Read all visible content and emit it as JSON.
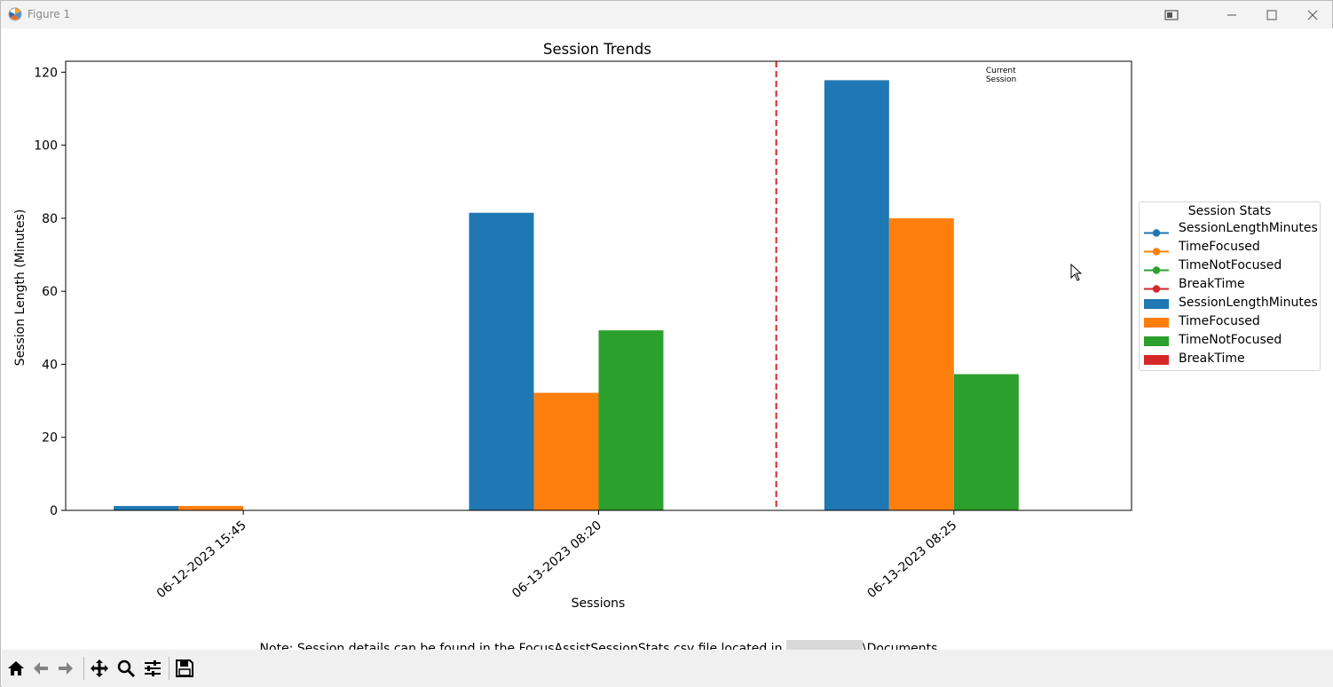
{
  "window": {
    "title": "Figure 1"
  },
  "chart_data": {
    "type": "bar",
    "title": "Session Trends",
    "xlabel": "Sessions",
    "ylabel": "Session Length (Minutes)",
    "ylim": [
      0,
      123
    ],
    "yticks": [
      0,
      20,
      40,
      60,
      80,
      100,
      120
    ],
    "categories": [
      "06-12-2023 15:45",
      "06-13-2023 08:20",
      "06-13-2023 08:25"
    ],
    "series": [
      {
        "name": "SessionLengthMinutes",
        "color": "#1f77b4",
        "values": [
          1.2,
          81.5,
          117.8
        ]
      },
      {
        "name": "TimeFocused",
        "color": "#ff7f0e",
        "values": [
          1.2,
          32.2,
          80.0
        ]
      },
      {
        "name": "TimeNotFocused",
        "color": "#2ca02c",
        "values": [
          0.0,
          49.3,
          37.3
        ]
      },
      {
        "name": "BreakTime",
        "color": "#d62728",
        "values": [
          0.0,
          0.0,
          0.0
        ]
      }
    ],
    "reference_line": {
      "after_category": "06-13-2023 08:20",
      "color": "#d62728",
      "style": "dashed"
    },
    "annotation": [
      "Current",
      "Session"
    ],
    "legend": {
      "title": "Session Stats",
      "placement": "outside-right",
      "entries": [
        {
          "label": "SessionLengthMinutes",
          "kind": "line",
          "color": "#1f77b4"
        },
        {
          "label": "TimeFocused",
          "kind": "line",
          "color": "#ff7f0e"
        },
        {
          "label": "TimeNotFocused",
          "kind": "line",
          "color": "#2ca02c"
        },
        {
          "label": "BreakTime",
          "kind": "line",
          "color": "#d62728"
        },
        {
          "label": "SessionLengthMinutes",
          "kind": "bar",
          "color": "#1f77b4"
        },
        {
          "label": "TimeFocused",
          "kind": "bar",
          "color": "#ff7f0e"
        },
        {
          "label": "TimeNotFocused",
          "kind": "bar",
          "color": "#2ca02c"
        },
        {
          "label": "BreakTime",
          "kind": "bar",
          "color": "#d62728"
        }
      ]
    },
    "grid": false
  },
  "note": {
    "prefix": "Note: Session details can be found in the FocusAssistSessionStats.csv file located in",
    "suffix": "\\Documents"
  },
  "toolbar": {
    "icons": [
      "home-icon",
      "back-icon",
      "forward-icon",
      "pan-icon",
      "zoom-icon",
      "configure-icon",
      "save-icon"
    ]
  }
}
